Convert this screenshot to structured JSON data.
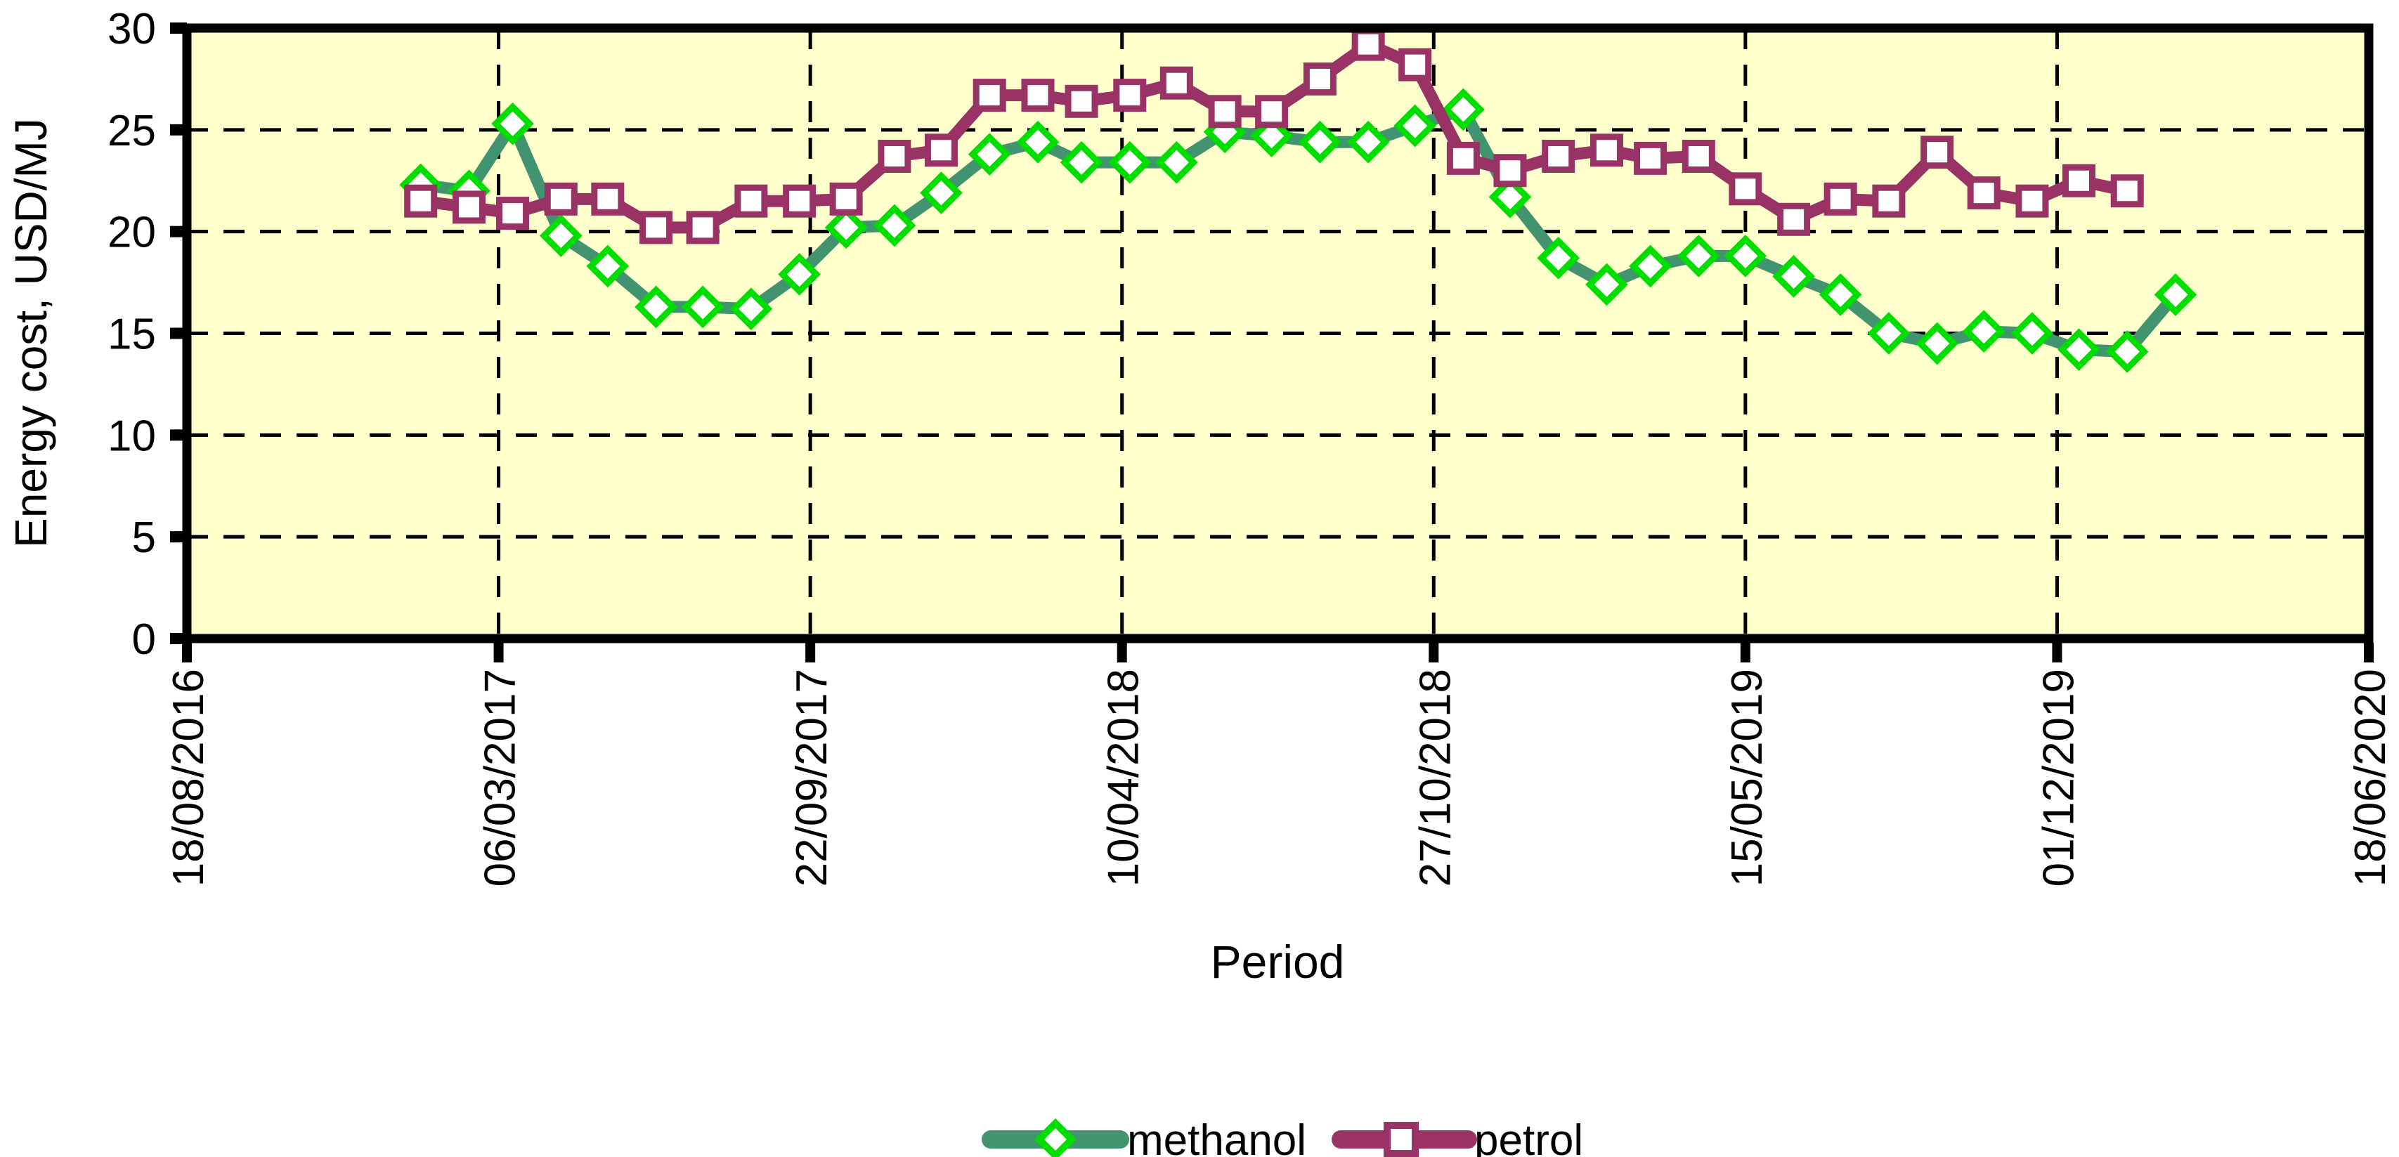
{
  "chart_data": {
    "type": "line",
    "title": "",
    "xlabel": "Period",
    "ylabel": "Energy cost, USD/MJ",
    "ylim": [
      0,
      30
    ],
    "yticks": [
      0,
      5,
      10,
      15,
      20,
      25,
      30
    ],
    "x_tick_labels": [
      "18/08/2016",
      "06/03/2017",
      "22/09/2017",
      "10/04/2018",
      "27/10/2018",
      "15/05/2019",
      "01/12/2019",
      "18/06/2020"
    ],
    "x_tick_interval_days": 200,
    "grid": "dashed",
    "plot_background": "#FFFFCC",
    "page_background": "#FFFFFF",
    "grid_color": "#000000",
    "legend_position": "bottom-center",
    "series": [
      {
        "name": "methanol",
        "line_color": "#42936F",
        "marker": "diamond",
        "marker_color": "#00DE00",
        "marker_fill": "#FFFFFF",
        "dates": [
          "15/01/2017",
          "15/02/2017",
          "15/03/2017",
          "15/04/2017",
          "15/05/2017",
          "15/06/2017",
          "15/07/2017",
          "15/08/2017",
          "15/09/2017",
          "15/10/2017",
          "15/11/2017",
          "15/12/2017",
          "15/01/2018",
          "15/02/2018",
          "15/03/2018",
          "15/04/2018",
          "15/05/2018",
          "15/06/2018",
          "15/07/2018",
          "15/08/2018",
          "15/09/2018",
          "15/10/2018",
          "15/11/2018",
          "15/12/2018",
          "15/01/2019",
          "15/02/2019",
          "15/03/2019",
          "15/04/2019",
          "15/05/2019",
          "15/06/2019",
          "15/07/2019",
          "15/08/2019",
          "15/09/2019",
          "15/10/2019",
          "15/11/2019",
          "15/12/2019",
          "15/01/2020",
          "15/02/2020"
        ],
        "values": [
          22.3,
          22.0,
          25.3,
          19.8,
          18.3,
          16.3,
          16.3,
          16.2,
          17.9,
          20.2,
          20.3,
          21.9,
          23.8,
          24.4,
          23.4,
          23.4,
          23.4,
          24.9,
          24.7,
          24.4,
          24.4,
          25.2,
          26.0,
          21.7,
          18.7,
          17.4,
          18.3,
          18.8,
          18.8,
          17.8,
          16.9,
          15.0,
          14.5,
          15.1,
          15.0,
          14.2,
          14.1,
          16.9
        ]
      },
      {
        "name": "petrol",
        "line_color": "#993366",
        "marker": "square",
        "marker_color": "#993366",
        "marker_fill": "#FFFFFF",
        "dates": [
          "15/01/2017",
          "15/02/2017",
          "15/03/2017",
          "15/04/2017",
          "15/05/2017",
          "15/06/2017",
          "15/07/2017",
          "15/08/2017",
          "15/09/2017",
          "15/10/2017",
          "15/11/2017",
          "15/12/2017",
          "15/01/2018",
          "15/02/2018",
          "15/03/2018",
          "15/04/2018",
          "15/05/2018",
          "15/06/2018",
          "15/07/2018",
          "15/08/2018",
          "15/09/2018",
          "15/10/2018",
          "15/11/2018",
          "15/12/2018",
          "15/01/2019",
          "15/02/2019",
          "15/03/2019",
          "15/04/2019",
          "15/05/2019",
          "15/06/2019",
          "15/07/2019",
          "15/08/2019",
          "15/09/2019",
          "15/10/2019",
          "15/11/2019",
          "15/12/2019",
          "15/01/2020"
        ],
        "values": [
          21.5,
          21.2,
          20.9,
          21.6,
          21.6,
          20.2,
          20.2,
          21.5,
          21.5,
          21.6,
          23.7,
          24.0,
          26.7,
          26.7,
          26.4,
          26.7,
          27.3,
          25.9,
          25.9,
          27.5,
          29.2,
          28.2,
          23.6,
          23.0,
          23.7,
          24.0,
          23.6,
          23.7,
          22.1,
          20.6,
          21.6,
          21.5,
          23.9,
          21.9,
          21.5,
          22.5,
          22.0
        ]
      }
    ]
  }
}
